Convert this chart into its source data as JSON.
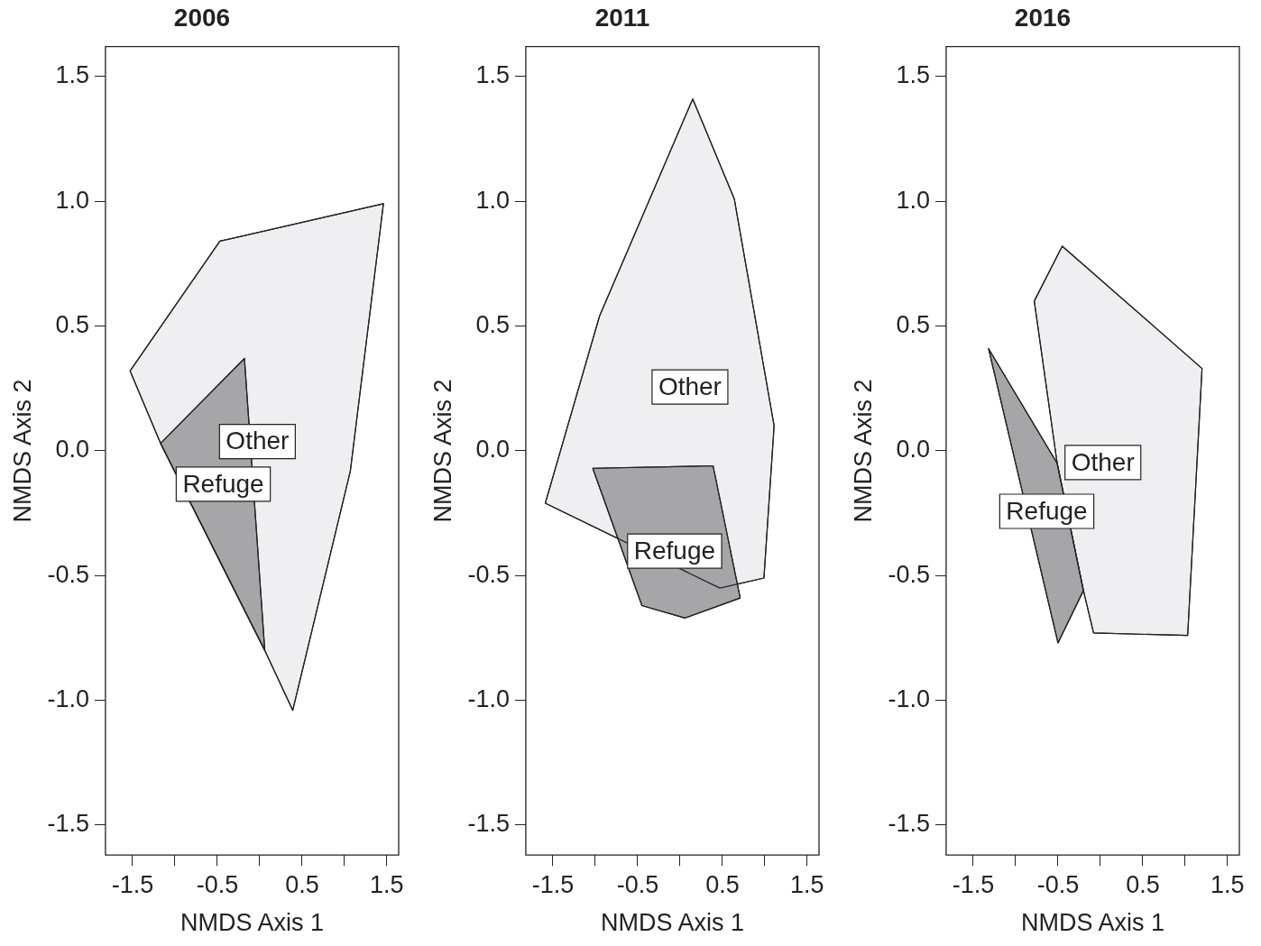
{
  "chart_data": [
    {
      "type": "area",
      "title": "2006",
      "xlabel": "NMDS Axis 1",
      "ylabel": "NMDS Axis 2",
      "xlim": [
        -1.82,
        1.64
      ],
      "ylim": [
        -1.62,
        1.62
      ],
      "xticks": [
        -1.5,
        {
          "value": -1,
          "label": null
        },
        -0.5,
        {
          "value": 0,
          "label": null
        },
        0.5,
        {
          "value": 1,
          "label": null
        },
        1.5
      ],
      "yticks": [
        -1.5,
        {
          "value": -1,
          "label": "-1.0"
        },
        -0.5,
        {
          "value": 0,
          "label": "0.0"
        },
        0.5,
        {
          "value": 1,
          "label": "1.0"
        },
        1.5
      ],
      "series": [
        {
          "name": "Other",
          "color": "#efeff1",
          "x": [
            -1.53,
            -0.47,
            1.46,
            1.07,
            0.39,
            0.06,
            -1.17
          ],
          "values": [
            0.32,
            0.84,
            0.99,
            -0.08,
            -1.04,
            -0.8,
            0.03
          ]
        },
        {
          "name": "Refuge",
          "color": "#a6a6a8",
          "x": [
            -1.17,
            -0.18,
            0.06
          ],
          "values": [
            0.03,
            0.37,
            -0.8
          ]
        }
      ]
    },
    {
      "type": "area",
      "title": "2011",
      "xlabel": "NMDS Axis 1",
      "ylabel": "NMDS Axis 2",
      "xlim": [
        -1.82,
        1.64
      ],
      "ylim": [
        -1.62,
        1.62
      ],
      "xticks": [
        -1.5,
        {
          "value": -1,
          "label": null
        },
        -0.5,
        {
          "value": 0,
          "label": null
        },
        0.5,
        {
          "value": 1,
          "label": null
        },
        1.5
      ],
      "yticks": [
        -1.5,
        {
          "value": -1,
          "label": "-1.0"
        },
        -0.5,
        {
          "value": 0,
          "label": "0.0"
        },
        0.5,
        {
          "value": 1,
          "label": "1.0"
        },
        1.5
      ],
      "series": [
        {
          "name": "Other",
          "color": "#efeff1",
          "x": [
            0.15,
            0.64,
            1.11,
            0.99,
            0.47,
            -1.59,
            -0.95
          ],
          "values": [
            1.41,
            1.01,
            0.1,
            -0.51,
            -0.55,
            -0.21,
            0.54
          ]
        },
        {
          "name": "Refuge",
          "color": "#a6a6a8",
          "x": [
            -1.03,
            0.39,
            0.71,
            0.06,
            -0.45
          ],
          "values": [
            -0.07,
            -0.06,
            -0.59,
            -0.67,
            -0.62
          ]
        }
      ]
    },
    {
      "type": "area",
      "title": "2016",
      "xlabel": "NMDS Axis 1",
      "ylabel": "NMDS Axis 2",
      "xlim": [
        -1.82,
        1.64
      ],
      "ylim": [
        -1.62,
        1.62
      ],
      "xticks": [
        -1.5,
        {
          "value": -1,
          "label": null
        },
        -0.5,
        {
          "value": 0,
          "label": null
        },
        0.5,
        {
          "value": 1,
          "label": null
        },
        1.5
      ],
      "yticks": [
        -1.5,
        {
          "value": -1,
          "label": "-1.0"
        },
        -0.5,
        {
          "value": 0,
          "label": "0.0"
        },
        0.5,
        {
          "value": 1,
          "label": "1.0"
        },
        1.5
      ],
      "series": [
        {
          "name": "Other",
          "color": "#efeff1",
          "x": [
            -0.78,
            -0.45,
            1.2,
            1.03,
            -0.08,
            -0.2,
            -0.51
          ],
          "values": [
            0.6,
            0.82,
            0.33,
            -0.74,
            -0.73,
            -0.56,
            -0.05
          ]
        },
        {
          "name": "Refuge",
          "color": "#a6a6a8",
          "x": [
            -1.32,
            -0.51,
            -0.2,
            -0.5
          ],
          "values": [
            0.41,
            -0.05,
            -0.56,
            -0.77
          ]
        }
      ]
    }
  ]
}
